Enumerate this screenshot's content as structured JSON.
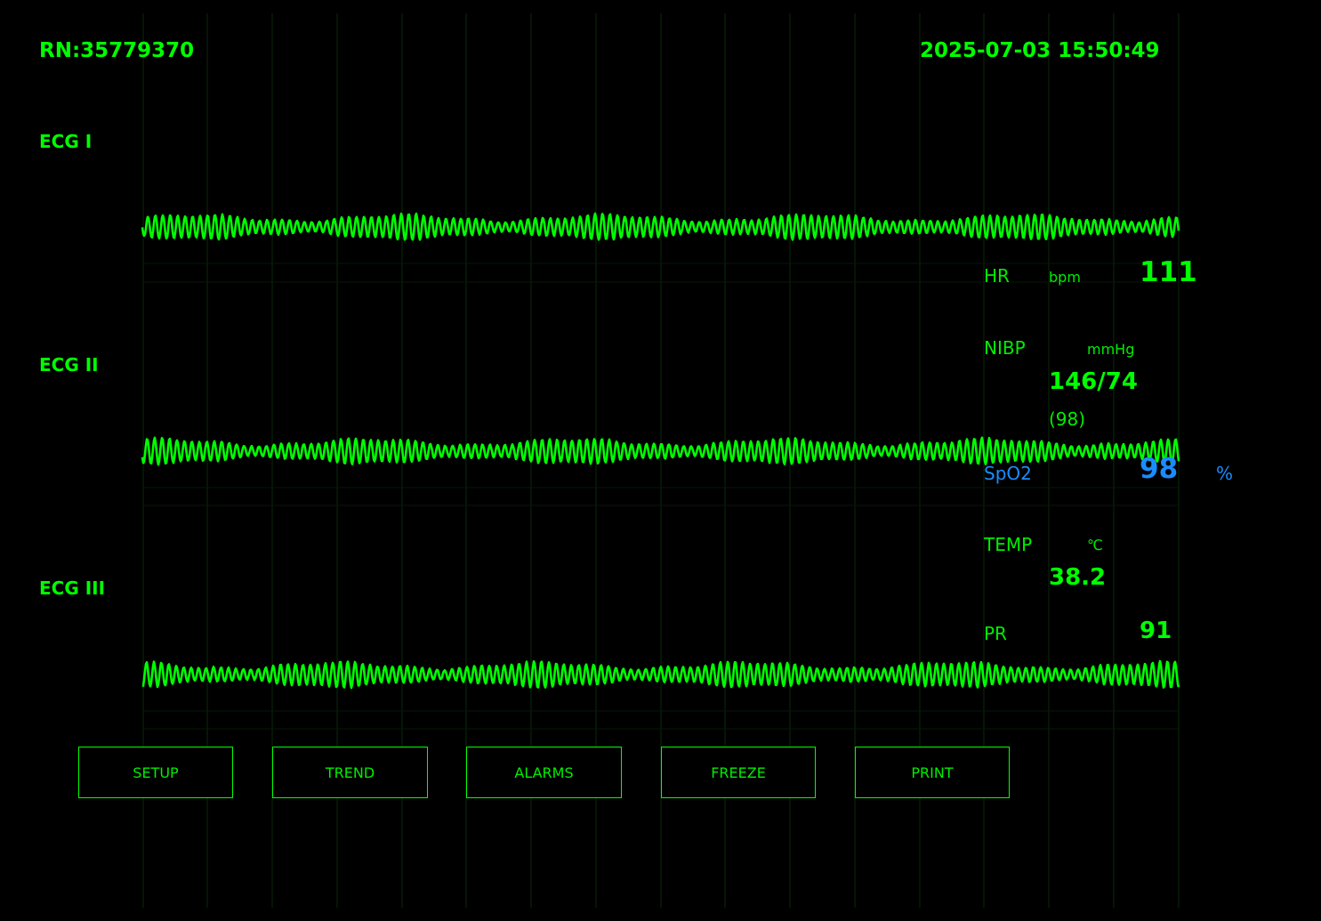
{
  "header": {
    "record_number": "RN:35779370",
    "datetime": "2025-07-03 15:50:49"
  },
  "leads": [
    {
      "label": "ECG I"
    },
    {
      "label": "ECG II"
    },
    {
      "label": "ECG III"
    }
  ],
  "vitals": {
    "hr": {
      "label": "HR",
      "unit": "bpm",
      "value": "111"
    },
    "nibp": {
      "label": "NIBP",
      "unit": "mmHg",
      "value": "146/74",
      "mean": "(98)"
    },
    "spo2": {
      "label": "SpO2",
      "unit": "%",
      "value": "98"
    },
    "temp": {
      "label": "TEMP",
      "unit": "℃",
      "value": "38.2"
    },
    "pr": {
      "label": "PR",
      "value": "91"
    }
  },
  "menu": {
    "setup": "SETUP",
    "trend": "TREND",
    "alarms": "ALARMS",
    "freeze": "FREEZE",
    "print": "PRINT"
  },
  "colors": {
    "background": "#000000",
    "primary": "#00ff00",
    "spo2": "#1a8cff",
    "grid": "#0a2a0a"
  },
  "waveforms": {
    "color": "#00ff00",
    "rate_description": "high-frequency sinusoidal ECG traces"
  }
}
